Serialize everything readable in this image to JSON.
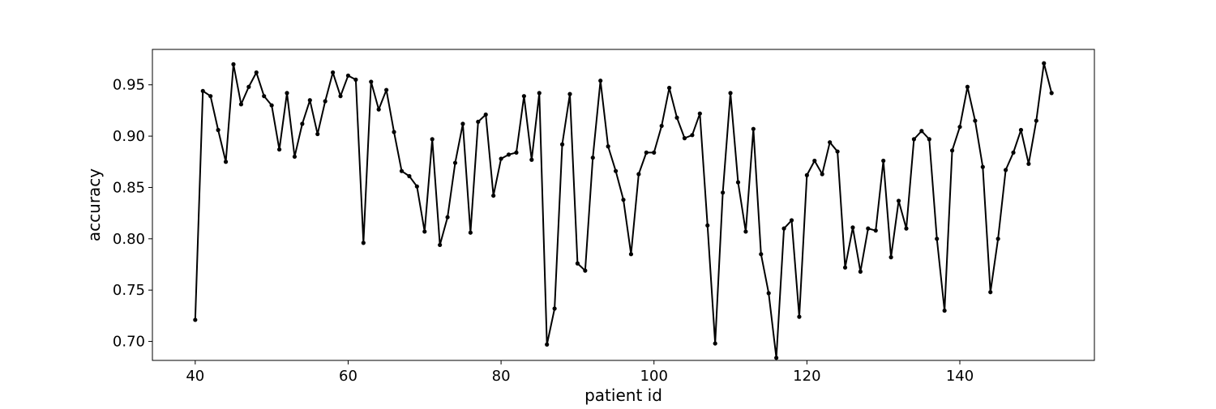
{
  "chart_data": {
    "type": "line",
    "xlabel": "patient id",
    "ylabel": "accuracy",
    "xlim": [
      34.4,
      157.6
    ],
    "ylim": [
      0.6815,
      0.9845
    ],
    "xticks": [
      40,
      60,
      80,
      100,
      120,
      140
    ],
    "xtick_labels": [
      "40",
      "60",
      "80",
      "100",
      "120",
      "140"
    ],
    "yticks": [
      0.7,
      0.75,
      0.8,
      0.85,
      0.9,
      0.95
    ],
    "ytick_labels": [
      "0.70",
      "0.75",
      "0.80",
      "0.85",
      "0.90",
      "0.95"
    ],
    "grid": false,
    "legend": "none",
    "colors": {
      "line": "#000000",
      "marker": "#000000",
      "frame": "#000000"
    },
    "x": [
      40,
      41,
      42,
      43,
      44,
      45,
      46,
      47,
      48,
      49,
      50,
      51,
      52,
      53,
      54,
      55,
      56,
      57,
      58,
      59,
      60,
      61,
      62,
      63,
      64,
      65,
      66,
      67,
      68,
      69,
      70,
      71,
      72,
      73,
      74,
      75,
      76,
      77,
      78,
      79,
      80,
      81,
      82,
      83,
      84,
      85,
      86,
      87,
      88,
      89,
      90,
      91,
      92,
      93,
      94,
      95,
      96,
      97,
      98,
      99,
      100,
      101,
      102,
      103,
      104,
      105,
      106,
      107,
      108,
      109,
      110,
      111,
      112,
      113,
      114,
      115,
      116,
      117,
      118,
      119,
      120,
      121,
      122,
      123,
      124,
      125,
      126,
      127,
      128,
      129,
      130,
      131,
      132,
      133,
      134,
      135,
      136,
      137,
      138,
      139,
      140,
      141,
      142,
      143,
      144,
      145,
      146,
      147,
      148,
      149,
      150,
      151,
      152
    ],
    "series": [
      {
        "values": [
          0.721,
          0.944,
          0.939,
          0.906,
          0.875,
          0.97,
          0.931,
          0.948,
          0.962,
          0.939,
          0.93,
          0.887,
          0.942,
          0.88,
          0.912,
          0.935,
          0.902,
          0.934,
          0.962,
          0.939,
          0.959,
          0.955,
          0.796,
          0.953,
          0.926,
          0.945,
          0.904,
          0.866,
          0.861,
          0.851,
          0.807,
          0.897,
          0.794,
          0.821,
          0.874,
          0.912,
          0.806,
          0.914,
          0.921,
          0.842,
          0.878,
          0.882,
          0.884,
          0.939,
          0.877,
          0.942,
          0.697,
          0.732,
          0.892,
          0.941,
          0.776,
          0.769,
          0.879,
          0.954,
          0.89,
          0.866,
          0.838,
          0.785,
          0.863,
          0.884,
          0.884,
          0.91,
          0.947,
          0.918,
          0.898,
          0.901,
          0.922,
          0.813,
          0.698,
          0.845,
          0.942,
          0.855,
          0.807,
          0.907,
          0.785,
          0.747,
          0.684,
          0.81,
          0.818,
          0.724,
          0.862,
          0.876,
          0.863,
          0.894,
          0.885,
          0.772,
          0.811,
          0.768,
          0.81,
          0.808,
          0.876,
          0.782,
          0.837,
          0.81,
          0.897,
          0.905,
          0.897,
          0.8,
          0.73,
          0.886,
          0.909,
          0.948,
          0.915,
          0.87,
          0.748,
          0.8,
          0.867,
          0.884,
          0.906,
          0.873,
          0.915,
          0.971,
          0.942
        ]
      }
    ]
  }
}
